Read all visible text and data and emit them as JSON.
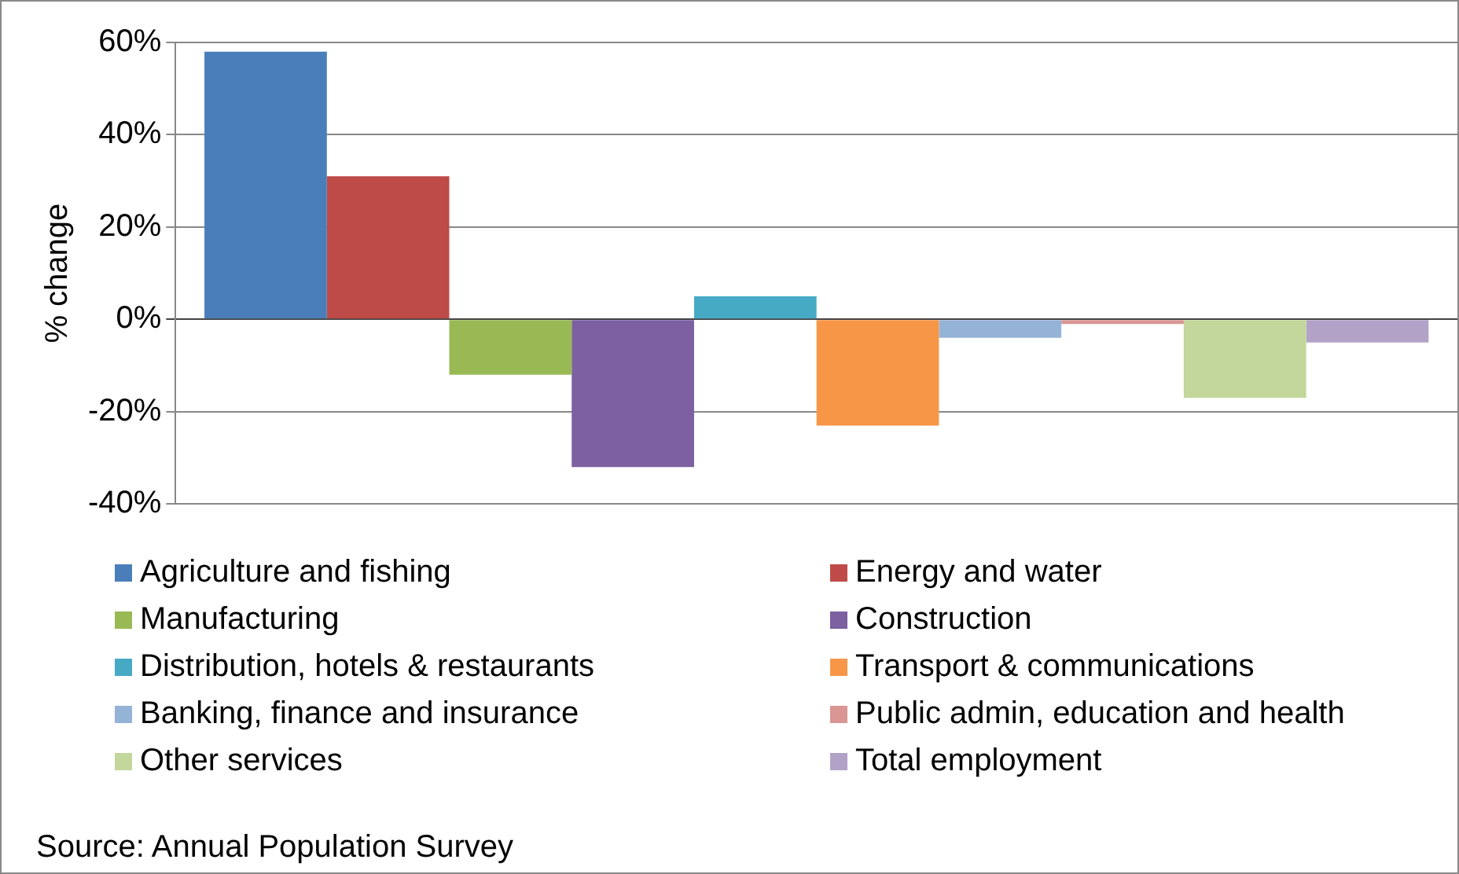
{
  "chart_data": {
    "type": "bar",
    "categories": [
      null
    ],
    "ylabel": "% change",
    "series": [
      {
        "name": "Agriculture and fishing",
        "color": "#4a7ebb",
        "values": [
          58
        ]
      },
      {
        "name": "Energy and water",
        "color": "#be4b48",
        "values": [
          31
        ]
      },
      {
        "name": "Manufacturing",
        "color": "#98b954",
        "values": [
          -12
        ]
      },
      {
        "name": "Construction",
        "color": "#7d60a0",
        "values": [
          -32
        ]
      },
      {
        "name": "Distribution, hotels & restaurants",
        "color": "#46aac5",
        "values": [
          5
        ]
      },
      {
        "name": "Transport & communications",
        "color": "#f79646",
        "values": [
          -23
        ]
      },
      {
        "name": "Banking, finance and insurance",
        "color": "#95b3d7",
        "values": [
          -4
        ]
      },
      {
        "name": "Public admin, education and health",
        "color": "#d99694",
        "values": [
          -1
        ]
      },
      {
        "name": "Other services",
        "color": "#c3d69b",
        "values": [
          -17
        ]
      },
      {
        "name": "Total employment",
        "color": "#b3a2c7",
        "values": [
          -5
        ]
      }
    ],
    "ylim": [
      -40,
      60
    ],
    "yticks": [
      {
        "value": -40,
        "label": "-40%"
      },
      {
        "value": -20,
        "label": "-20%"
      },
      {
        "value": 0,
        "label": "0%"
      },
      {
        "value": 20,
        "label": "20%"
      },
      {
        "value": 40,
        "label": "40%"
      },
      {
        "value": 60,
        "label": "60%"
      }
    ],
    "grid": "y",
    "legend": "bottom",
    "annotations": [
      "Source: Annual Population Survey"
    ]
  }
}
